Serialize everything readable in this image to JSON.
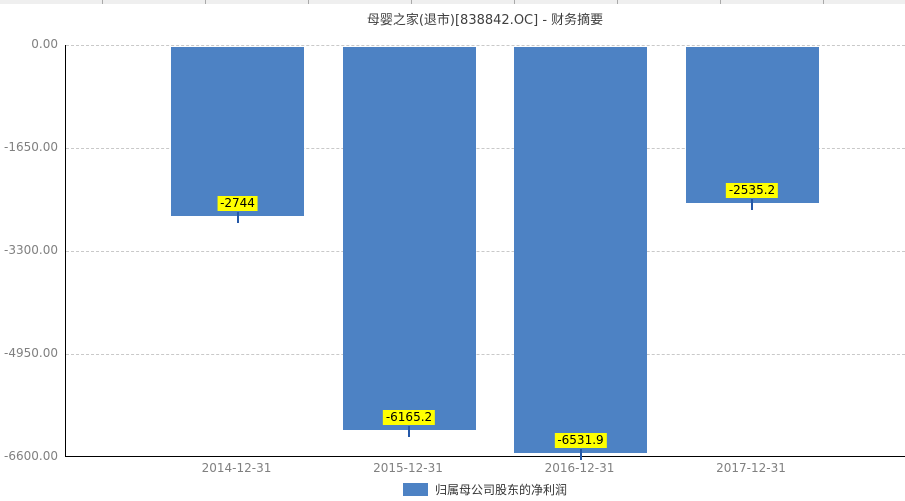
{
  "page": {
    "background": "#ffffff"
  },
  "top_ruler": {
    "color": "#efefef",
    "tick_color": "#a9a9a9"
  },
  "chart_data": {
    "type": "bar",
    "title": "母婴之家(退市)[838842.OC] - 财务摘要",
    "categories": [
      "2014-12-31",
      "2015-12-31",
      "2016-12-31",
      "2017-12-31"
    ],
    "series": [
      {
        "name": "归属母公司股东的净利润",
        "values": [
          -2744,
          -6165.2,
          -6531.9,
          -2535.2
        ],
        "labels": [
          "-2744",
          "-6165.2",
          "-6531.9",
          "-2535.2"
        ],
        "color": "#4d82c4"
      }
    ],
    "ylim": [
      -6600,
      0
    ],
    "y_ticks": [
      {
        "value": 0,
        "label": "0.00"
      },
      {
        "value": -1650,
        "label": "-1650.00"
      },
      {
        "value": -3300,
        "label": "-3300.00"
      },
      {
        "value": -4950,
        "label": "-4950.00"
      },
      {
        "value": -6600,
        "label": "-6600.00"
      }
    ],
    "grid": "horizontal-dashed",
    "legend_position": "bottom",
    "bar_value_label_style": {
      "background": "#ffff00",
      "text": "#000000"
    }
  },
  "legend": {
    "label": "归属母公司股东的净利润"
  },
  "colors": {
    "bar": "#4d82c4",
    "value_label_bg": "#ffff00",
    "value_label_text": "#000000",
    "value_tick": "#2458a8",
    "axis_line": "#000000",
    "grid_line": "#c9c9c9",
    "axis_text": "#808080",
    "title_text": "#404040",
    "legend_text": "#333333"
  }
}
